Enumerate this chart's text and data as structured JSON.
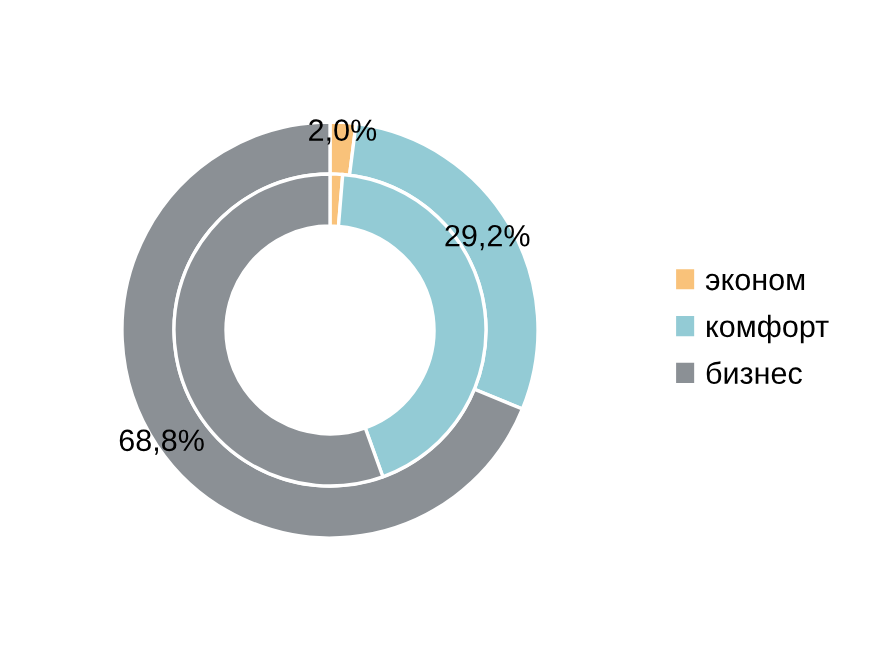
{
  "chart_data": {
    "type": "donut",
    "categories": [
      "эконом",
      "комфорт",
      "бизнес"
    ],
    "colors": [
      "#f9c27a",
      "#93cbd5",
      "#8b9095"
    ],
    "series": [
      {
        "values": [
          2.0,
          29.2,
          68.8
        ],
        "value_labels": [
          "2,0%",
          "29,2%",
          "68,8%"
        ]
      },
      {
        "values": [
          1.3,
          43.2,
          55.5
        ]
      }
    ],
    "legend": "right"
  }
}
